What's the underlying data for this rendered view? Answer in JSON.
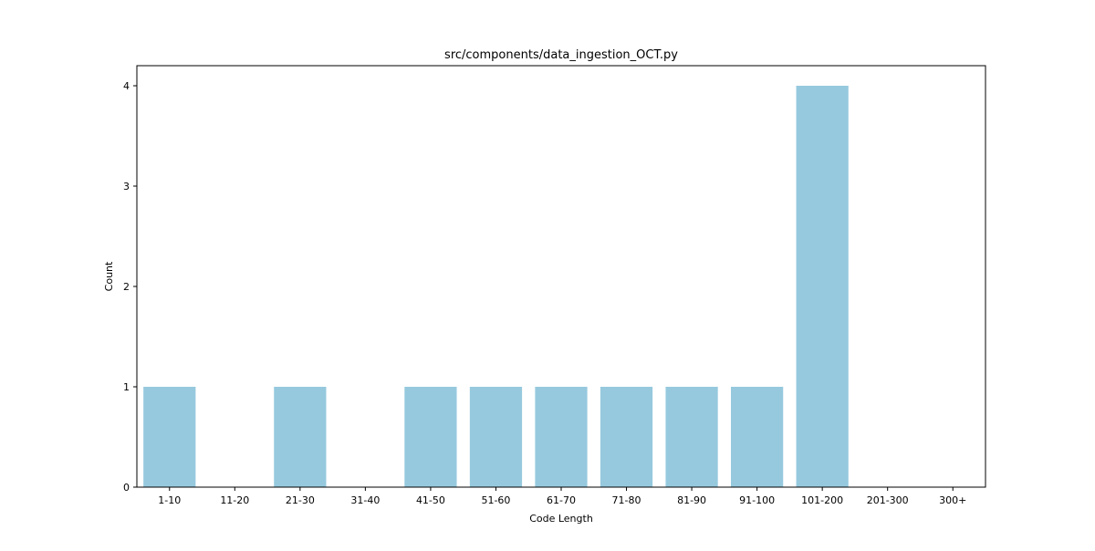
{
  "chart_data": {
    "type": "bar",
    "title": "src/components/data_ingestion_OCT.py",
    "xlabel": "Code Length",
    "ylabel": "Count",
    "categories": [
      "1-10",
      "11-20",
      "21-30",
      "31-40",
      "41-50",
      "51-60",
      "61-70",
      "71-80",
      "81-90",
      "91-100",
      "101-200",
      "201-300",
      "300+"
    ],
    "values": [
      1,
      0,
      1,
      0,
      1,
      1,
      1,
      1,
      1,
      1,
      4,
      0,
      0
    ],
    "yticks": [
      "0",
      "1",
      "2",
      "3",
      "4"
    ],
    "ylim": [
      0,
      4.2
    ],
    "grid": false,
    "bar_color": "#96c9de"
  }
}
